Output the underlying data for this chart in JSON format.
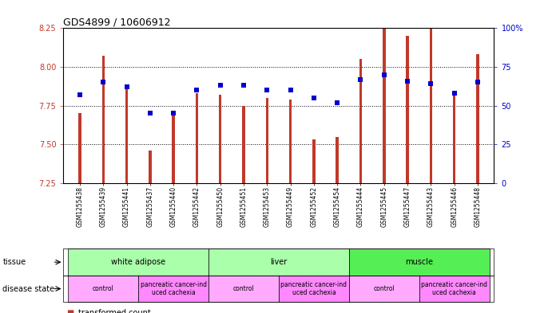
{
  "title": "GDS4899 / 10606912",
  "samples": [
    "GSM1255438",
    "GSM1255439",
    "GSM1255441",
    "GSM1255437",
    "GSM1255440",
    "GSM1255442",
    "GSM1255450",
    "GSM1255451",
    "GSM1255453",
    "GSM1255449",
    "GSM1255452",
    "GSM1255454",
    "GSM1255444",
    "GSM1255445",
    "GSM1255447",
    "GSM1255443",
    "GSM1255446",
    "GSM1255448"
  ],
  "bar_values": [
    7.7,
    8.07,
    7.86,
    7.46,
    7.71,
    7.83,
    7.82,
    7.75,
    7.8,
    7.79,
    7.53,
    7.55,
    8.05,
    8.25,
    8.2,
    8.25,
    7.82,
    8.08
  ],
  "dot_values": [
    57,
    65,
    62,
    45,
    45,
    60,
    63,
    63,
    60,
    60,
    55,
    52,
    67,
    70,
    66,
    64,
    58,
    65
  ],
  "ylim_left": [
    7.25,
    8.25
  ],
  "ylim_right": [
    0,
    100
  ],
  "yticks_left": [
    7.25,
    7.5,
    7.75,
    8.0,
    8.25
  ],
  "yticks_right": [
    0,
    25,
    50,
    75,
    100
  ],
  "bar_color": "#C0392B",
  "dot_color": "#0000CC",
  "background_color": "#FFFFFF",
  "tissue_groups": [
    {
      "label": "white adipose",
      "start": 0,
      "end": 5,
      "color": "#AAFFAA"
    },
    {
      "label": "liver",
      "start": 6,
      "end": 11,
      "color": "#AAFFAA"
    },
    {
      "label": "muscle",
      "start": 12,
      "end": 17,
      "color": "#55EE55"
    }
  ],
  "disease_groups": [
    {
      "label": "control",
      "start": 0,
      "end": 2,
      "color": "#FFAAFF"
    },
    {
      "label": "pancreatic cancer-ind\nuced cachexia",
      "start": 3,
      "end": 5,
      "color": "#FF88FF"
    },
    {
      "label": "control",
      "start": 6,
      "end": 8,
      "color": "#FFAAFF"
    },
    {
      "label": "pancreatic cancer-ind\nuced cachexia",
      "start": 9,
      "end": 11,
      "color": "#FF88FF"
    },
    {
      "label": "control",
      "start": 12,
      "end": 14,
      "color": "#FFAAFF"
    },
    {
      "label": "pancreatic cancer-ind\nuced cachexia",
      "start": 15,
      "end": 17,
      "color": "#FF88FF"
    }
  ],
  "tissue_row_label": "tissue",
  "disease_row_label": "disease state",
  "bar_width": 0.12
}
